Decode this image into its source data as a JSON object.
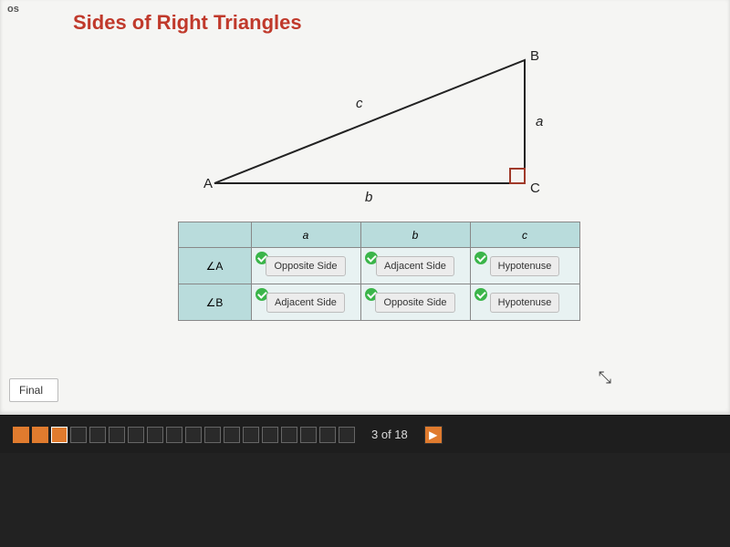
{
  "topbar_stub": "os",
  "title": "Sides of Right Triangles",
  "triangle": {
    "vertices": {
      "A": "A",
      "B": "B",
      "C": "C"
    },
    "sides": {
      "a": "a",
      "b": "b",
      "c": "c"
    },
    "stroke": "#222222",
    "right_angle_stroke": "#a03a2a"
  },
  "table": {
    "headers": {
      "corner": "",
      "a": "a",
      "b": "b",
      "c": "c"
    },
    "rows": [
      {
        "label": "∠A",
        "a": "Opposite Side",
        "b": "Adjacent Side",
        "c": "Hypotenuse"
      },
      {
        "label": "∠B",
        "a": "Adjacent Side",
        "b": "Opposite Side",
        "c": "Hypotenuse"
      }
    ],
    "colors": {
      "header_bg": "#b9dcdc",
      "cell_bg": "#e8f2f2",
      "chip_bg": "#ececec",
      "check_bg": "#3bb54a"
    }
  },
  "final_button": "Final",
  "nav": {
    "total": 18,
    "current": 3,
    "counter": "3 of 18",
    "box_states": [
      "done",
      "done",
      "current",
      "",
      "",
      "",
      "",
      "",
      "",
      "",
      "",
      "",
      "",
      "",
      "",
      "",
      "",
      ""
    ],
    "next_glyph": "▶"
  }
}
